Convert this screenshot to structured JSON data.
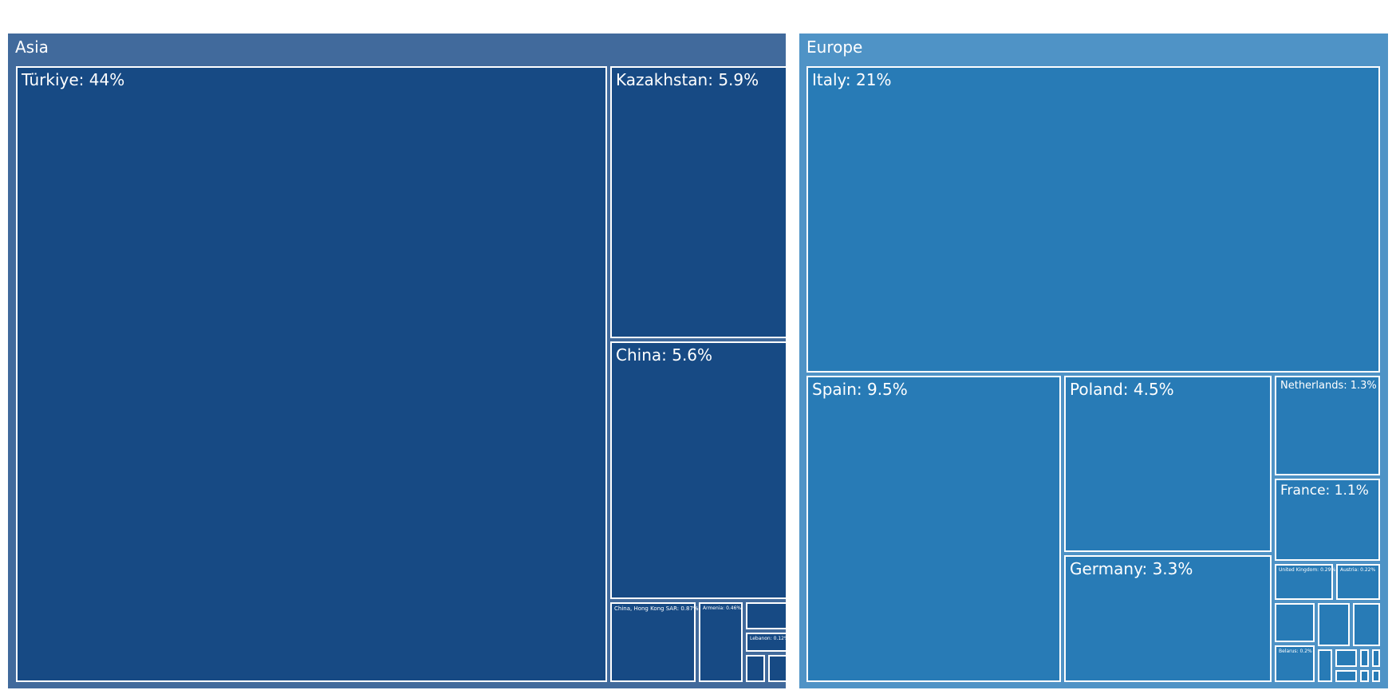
{
  "chart_data": {
    "type": "treemap",
    "title": "",
    "groups": [
      {
        "name": "Asia",
        "color": "#416a9c",
        "cell_color": "#174a84",
        "children": [
          {
            "name": "Türkiye",
            "label": "Türkiye: 44%",
            "value": 44
          },
          {
            "name": "Kazakhstan",
            "label": "Kazakhstan: 5.9%",
            "value": 5.9
          },
          {
            "name": "China",
            "label": "China: 5.6%",
            "value": 5.6
          },
          {
            "name": "China, Hong Kong SAR",
            "label": "China, Hong Kong SAR: 0.87%",
            "value": 0.87
          },
          {
            "name": "Armenia",
            "label": "Armenia: 0.46%",
            "value": 0.46
          },
          {
            "name": "",
            "label": "",
            "value": null
          },
          {
            "name": "Lebanon",
            "label": "Lebanon: 0.12%",
            "value": 0.12
          },
          {
            "name": "",
            "label": "",
            "value": null
          },
          {
            "name": "",
            "label": "",
            "value": null
          }
        ]
      },
      {
        "name": "Europe",
        "color": "#4f93c6",
        "cell_color": "#287bb6",
        "children": [
          {
            "name": "Italy",
            "label": "Italy: 21%",
            "value": 21
          },
          {
            "name": "Spain",
            "label": "Spain: 9.5%",
            "value": 9.5
          },
          {
            "name": "Poland",
            "label": "Poland: 4.5%",
            "value": 4.5
          },
          {
            "name": "Germany",
            "label": "Germany: 3.3%",
            "value": 3.3
          },
          {
            "name": "Netherlands",
            "label": "Netherlands: 1.3%",
            "value": 1.3
          },
          {
            "name": "France",
            "label": "France: 1.1%",
            "value": 1.1
          },
          {
            "name": "United Kingdom",
            "label": "United Kingdom: 0.29%",
            "value": 0.29
          },
          {
            "name": "Austria",
            "label": "Austria: 0.22%",
            "value": 0.22
          },
          {
            "name": "",
            "label": "",
            "value": null
          },
          {
            "name": "",
            "label": "",
            "value": null
          },
          {
            "name": "",
            "label": "",
            "value": null
          },
          {
            "name": "Belarus",
            "label": "Belarus: 0.2%",
            "value": 0.2
          },
          {
            "name": "",
            "label": "",
            "value": null
          },
          {
            "name": "",
            "label": "",
            "value": null
          },
          {
            "name": "",
            "label": "",
            "value": null
          },
          {
            "name": "",
            "label": "",
            "value": null
          },
          {
            "name": "",
            "label": "",
            "value": null
          },
          {
            "name": "",
            "label": "",
            "value": null
          },
          {
            "name": "",
            "label": "",
            "value": null
          }
        ]
      }
    ]
  }
}
